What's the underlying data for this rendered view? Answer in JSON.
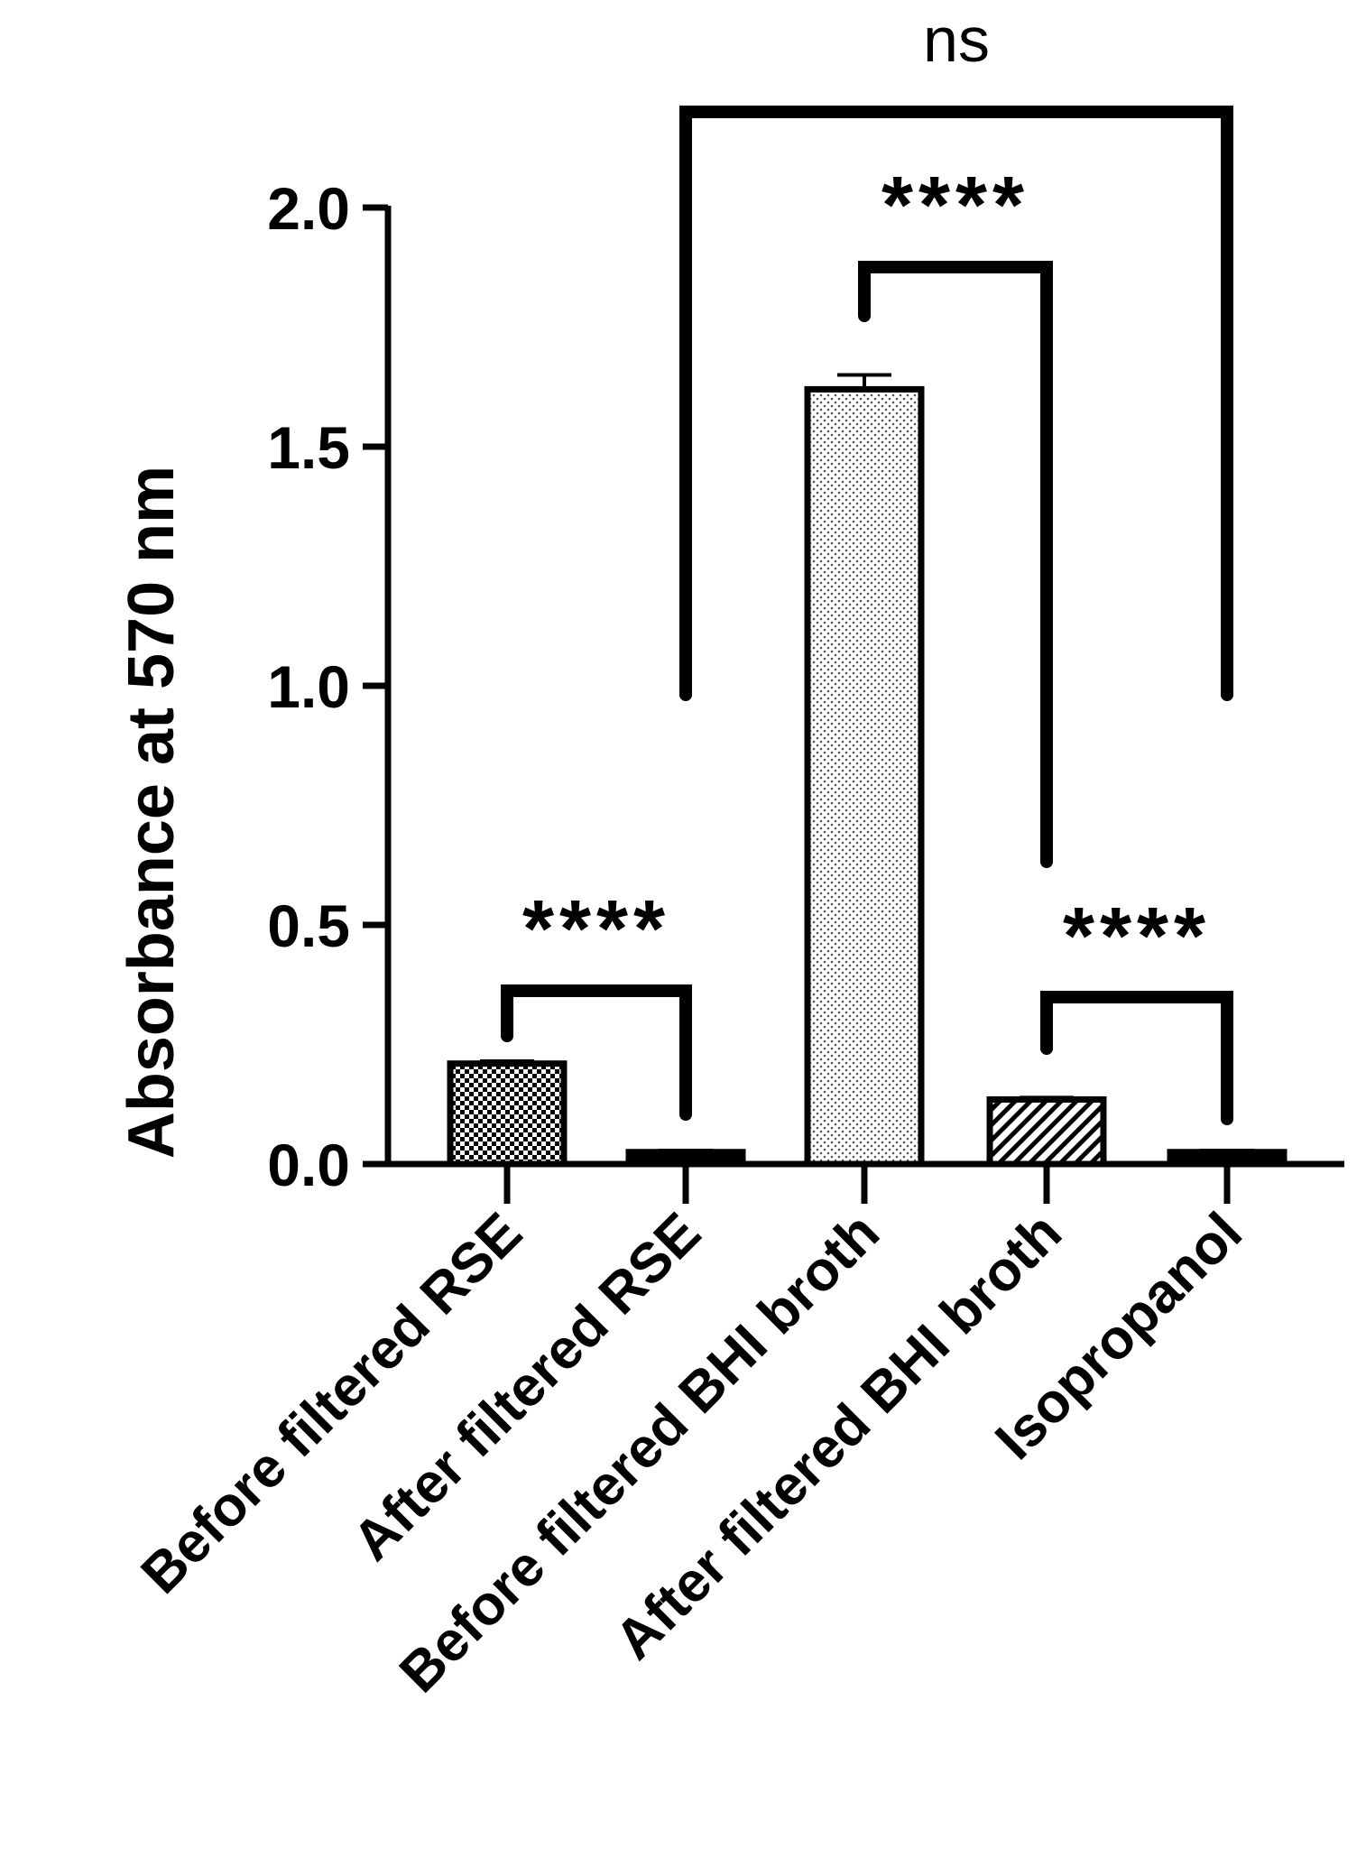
{
  "chart_data": {
    "type": "bar",
    "ylabel": "Absorbance at 570 nm",
    "xlabel": "",
    "title": "",
    "ylim": [
      0,
      2.0
    ],
    "yticks": [
      "0.0",
      "0.5",
      "1.0",
      "1.5",
      "2.0"
    ],
    "categories": [
      "Before filtered RSE",
      "After filtered RSE",
      "Before filtered BHI broth",
      "After filtered BHI broth",
      "Isopropanol"
    ],
    "values": [
      0.21,
      0.025,
      1.62,
      0.135,
      0.025
    ],
    "errors": [
      0.005,
      0.003,
      0.03,
      0.004,
      0.003
    ],
    "patterns": [
      "checker",
      "solid",
      "fine-dots",
      "diagonal-hatch",
      "solid"
    ],
    "grid": false,
    "comparisons": [
      {
        "from": 0,
        "to": 1,
        "label": "****"
      },
      {
        "from": 2,
        "to": 3,
        "label": "****"
      },
      {
        "from": 3,
        "to": 4,
        "label": "****"
      },
      {
        "from": 1,
        "to": 4,
        "label": "ns"
      }
    ]
  }
}
